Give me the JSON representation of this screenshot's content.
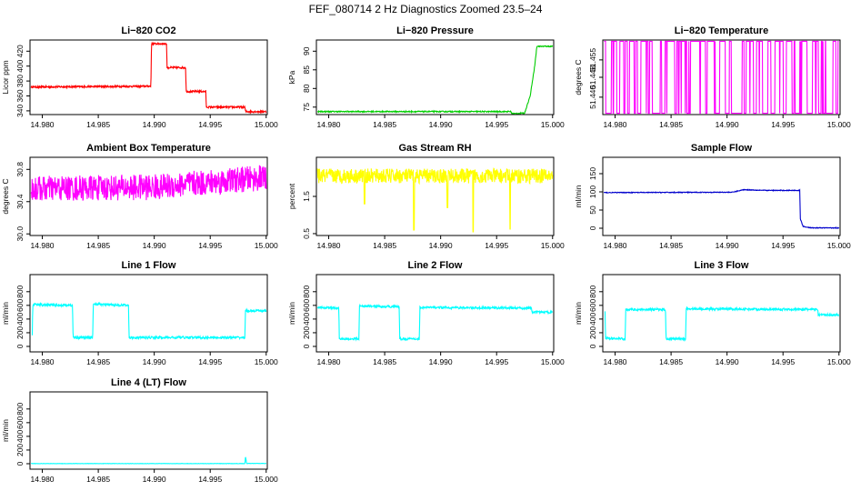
{
  "main_title": "FEF_080714  2 Hz Diagnostics Zoomed 23.5–24",
  "chart_data": [
    {
      "id": "p1",
      "type": "line",
      "title": "Li−820 CO2",
      "ylabel": "Licor ppm",
      "color": "#ff0000",
      "xlim": [
        14.9789,
        15.0001
      ],
      "ylim": [
        335,
        435
      ],
      "xticks": [
        14.98,
        14.985,
        14.99,
        14.995,
        15.0
      ],
      "xtick_labels": [
        "14.980",
        "14.985",
        "14.990",
        "14.995",
        "15.000"
      ],
      "yticks": [
        340,
        360,
        380,
        400,
        420
      ],
      "ytick_labels": [
        "340",
        "360",
        "380",
        "400",
        "420"
      ],
      "series": [
        {
          "name": "CO2",
          "x": [
            14.979,
            14.9897,
            14.98975,
            14.9911,
            14.99115,
            14.9928,
            14.99285,
            14.9946,
            14.99465,
            14.9981,
            14.99815,
            15.0
          ],
          "y": [
            372,
            373,
            430,
            430,
            398,
            398,
            366,
            366,
            345,
            345,
            339,
            339
          ],
          "noise": 1.2
        }
      ]
    },
    {
      "id": "p2",
      "type": "line",
      "title": "Li−820 Pressure",
      "ylabel": "kPa",
      "color": "#00cc00",
      "xlim": [
        14.9789,
        15.0001
      ],
      "ylim": [
        73,
        93
      ],
      "xticks": [
        14.98,
        14.985,
        14.99,
        14.995,
        15.0
      ],
      "xtick_labels": [
        "14.980",
        "14.985",
        "14.990",
        "14.995",
        "15.000"
      ],
      "yticks": [
        75,
        80,
        85,
        90
      ],
      "ytick_labels": [
        "75",
        "80",
        "85",
        "90"
      ],
      "series": [
        {
          "name": "Pressure",
          "x": [
            14.979,
            14.9963,
            14.99635,
            14.9975,
            14.998,
            14.9984,
            14.9986,
            15.0
          ],
          "y": [
            73.8,
            73.8,
            73.2,
            73.4,
            78,
            86,
            91.3,
            91.3
          ],
          "noise": 0.15
        }
      ]
    },
    {
      "id": "p3",
      "type": "line",
      "title": "Li−820 Temperature",
      "ylabel": "degrees C",
      "color": "#ff00ff",
      "xlim": [
        14.9789,
        15.0001
      ],
      "ylim": [
        51.433,
        51.463
      ],
      "xticks": [
        14.98,
        14.985,
        14.99,
        14.995,
        15.0
      ],
      "xtick_labels": [
        "14.980",
        "14.985",
        "14.990",
        "14.995",
        "15.000"
      ],
      "yticks": [
        51.44,
        51.448,
        51.455
      ],
      "ytick_labels": [
        "51.440",
        "51.448",
        "51.455"
      ],
      "series": [
        {
          "name": "Temperature",
          "x": [
            14.979,
            15.0
          ],
          "y": [
            51.4335,
            51.4625
          ],
          "mode": "binary"
        }
      ]
    },
    {
      "id": "p4",
      "type": "line",
      "title": "Ambient Box Temperature",
      "ylabel": "degrees C",
      "color": "#ff00ff",
      "xlim": [
        14.9789,
        15.0001
      ],
      "ylim": [
        29.98,
        30.95
      ],
      "xticks": [
        14.98,
        14.985,
        14.99,
        14.995,
        15.0
      ],
      "xtick_labels": [
        "14.980",
        "14.985",
        "14.990",
        "14.995",
        "15.000"
      ],
      "yticks": [
        30.0,
        30.4,
        30.8
      ],
      "ytick_labels": [
        "30.0",
        "30.4",
        "30.8"
      ],
      "series": [
        {
          "name": "Ambient",
          "x": [
            14.979,
            14.99,
            15.0
          ],
          "y": [
            30.56,
            30.58,
            30.7
          ],
          "noise": 0.16
        }
      ]
    },
    {
      "id": "p5",
      "type": "line",
      "title": "Gas Stream RH",
      "ylabel": "percent",
      "color": "#ffff00",
      "xlim": [
        14.9789,
        15.0001
      ],
      "ylim": [
        0.45,
        2.55
      ],
      "xticks": [
        14.98,
        14.985,
        14.99,
        14.995,
        15.0
      ],
      "xtick_labels": [
        "14.980",
        "14.985",
        "14.990",
        "14.995",
        "15.000"
      ],
      "yticks": [
        0.5,
        1.5
      ],
      "ytick_labels": [
        "0.5",
        "1.5"
      ],
      "series": [
        {
          "name": "RH",
          "x": [
            14.979,
            15.0
          ],
          "y": [
            2.05,
            2.05
          ],
          "noise": 0.2,
          "dips": [
            [
              14.9876,
              0.6
            ],
            [
              14.9929,
              0.55
            ],
            [
              14.9962,
              0.62
            ],
            [
              14.9906,
              1.2
            ],
            [
              14.9832,
              1.3
            ]
          ]
        }
      ]
    },
    {
      "id": "p6",
      "type": "line",
      "title": "Sample Flow",
      "ylabel": "ml/min",
      "color": "#0000cc",
      "xlim": [
        14.9789,
        15.0001
      ],
      "ylim": [
        -20,
        195
      ],
      "xticks": [
        14.98,
        14.985,
        14.99,
        14.995,
        15.0
      ],
      "xtick_labels": [
        "14.980",
        "14.985",
        "14.990",
        "14.995",
        "15.000"
      ],
      "yticks": [
        0,
        50,
        100,
        150
      ],
      "ytick_labels": [
        "0",
        "50",
        "100",
        "150"
      ],
      "series": [
        {
          "name": "Sample",
          "x": [
            14.979,
            14.9905,
            14.9915,
            14.9935,
            14.9965,
            14.99655,
            14.9968,
            14.9975,
            15.0
          ],
          "y": [
            98,
            99,
            106,
            104,
            104,
            25,
            5,
            1,
            1
          ],
          "noise": 1.0
        }
      ]
    },
    {
      "id": "p7",
      "type": "line",
      "title": "Line 1 Flow",
      "ylabel": "ml/min",
      "color": "#00ffff",
      "xlim": [
        14.9789,
        15.0001
      ],
      "ylim": [
        -80,
        1050
      ],
      "xticks": [
        14.98,
        14.985,
        14.99,
        14.995,
        15.0
      ],
      "xtick_labels": [
        "14.980",
        "14.985",
        "14.990",
        "14.995",
        "15.000"
      ],
      "yticks": [
        0,
        200,
        400,
        600,
        800
      ],
      "ytick_labels": [
        "0",
        "200",
        "400",
        "600",
        "800"
      ],
      "series": [
        {
          "name": "Line1",
          "x": [
            14.9791,
            14.97915,
            14.9827,
            14.98275,
            14.9845,
            14.98455,
            14.9877,
            14.98775,
            14.9981,
            14.99815,
            15.0
          ],
          "y": [
            150,
            610,
            600,
            130,
            130,
            620,
            600,
            130,
            130,
            520,
            520
          ],
          "noise": 18
        }
      ]
    },
    {
      "id": "p8",
      "type": "line",
      "title": "Line 2 Flow",
      "ylabel": "ml/min",
      "color": "#00ffff",
      "xlim": [
        14.9789,
        15.0001
      ],
      "ylim": [
        -80,
        1050
      ],
      "xticks": [
        14.98,
        14.985,
        14.99,
        14.995,
        15.0
      ],
      "xtick_labels": [
        "14.980",
        "14.985",
        "14.990",
        "14.995",
        "15.000"
      ],
      "yticks": [
        0,
        200,
        400,
        600,
        800
      ],
      "ytick_labels": [
        "0",
        "200",
        "400",
        "600",
        "800"
      ],
      "series": [
        {
          "name": "Line2",
          "x": [
            14.979,
            14.9809,
            14.98095,
            14.9827,
            14.98275,
            14.9863,
            14.98635,
            14.9881,
            14.98815,
            14.9981,
            14.99815,
            15.0
          ],
          "y": [
            570,
            560,
            110,
            110,
            590,
            580,
            110,
            110,
            570,
            560,
            500,
            500
          ],
          "noise": 16
        }
      ]
    },
    {
      "id": "p9",
      "type": "line",
      "title": "Line 3 Flow",
      "ylabel": "ml/min",
      "color": "#00ffff",
      "xlim": [
        14.9789,
        15.0001
      ],
      "ylim": [
        -80,
        1050
      ],
      "xticks": [
        14.98,
        14.985,
        14.99,
        14.995,
        15.0
      ],
      "xtick_labels": [
        "14.980",
        "14.985",
        "14.990",
        "14.995",
        "15.000"
      ],
      "yticks": [
        0,
        200,
        400,
        600,
        800
      ],
      "ytick_labels": [
        "0",
        "200",
        "400",
        "600",
        "800"
      ],
      "series": [
        {
          "name": "Line3",
          "x": [
            14.9791,
            14.97915,
            14.9809,
            14.98095,
            14.9845,
            14.98455,
            14.9863,
            14.98635,
            14.9981,
            14.99815,
            15.0
          ],
          "y": [
            520,
            120,
            110,
            540,
            540,
            110,
            110,
            550,
            540,
            460,
            460
          ],
          "noise": 16
        }
      ]
    },
    {
      "id": "p10",
      "type": "line",
      "title": "Line 4 (LT) Flow",
      "ylabel": "ml/min",
      "color": "#00ffff",
      "xlim": [
        14.9789,
        15.0001
      ],
      "ylim": [
        -80,
        1050
      ],
      "xticks": [
        14.98,
        14.985,
        14.99,
        14.995,
        15.0
      ],
      "xtick_labels": [
        "14.980",
        "14.985",
        "14.990",
        "14.995",
        "15.000"
      ],
      "yticks": [
        0,
        200,
        400,
        600,
        800
      ],
      "ytick_labels": [
        "0",
        "200",
        "400",
        "600",
        "800"
      ],
      "series": [
        {
          "name": "Line4",
          "x": [
            14.979,
            14.9981,
            14.99815,
            14.9982,
            14.99825,
            15.0
          ],
          "y": [
            2,
            2,
            110,
            60,
            4,
            4
          ],
          "noise": 2
        }
      ]
    }
  ]
}
